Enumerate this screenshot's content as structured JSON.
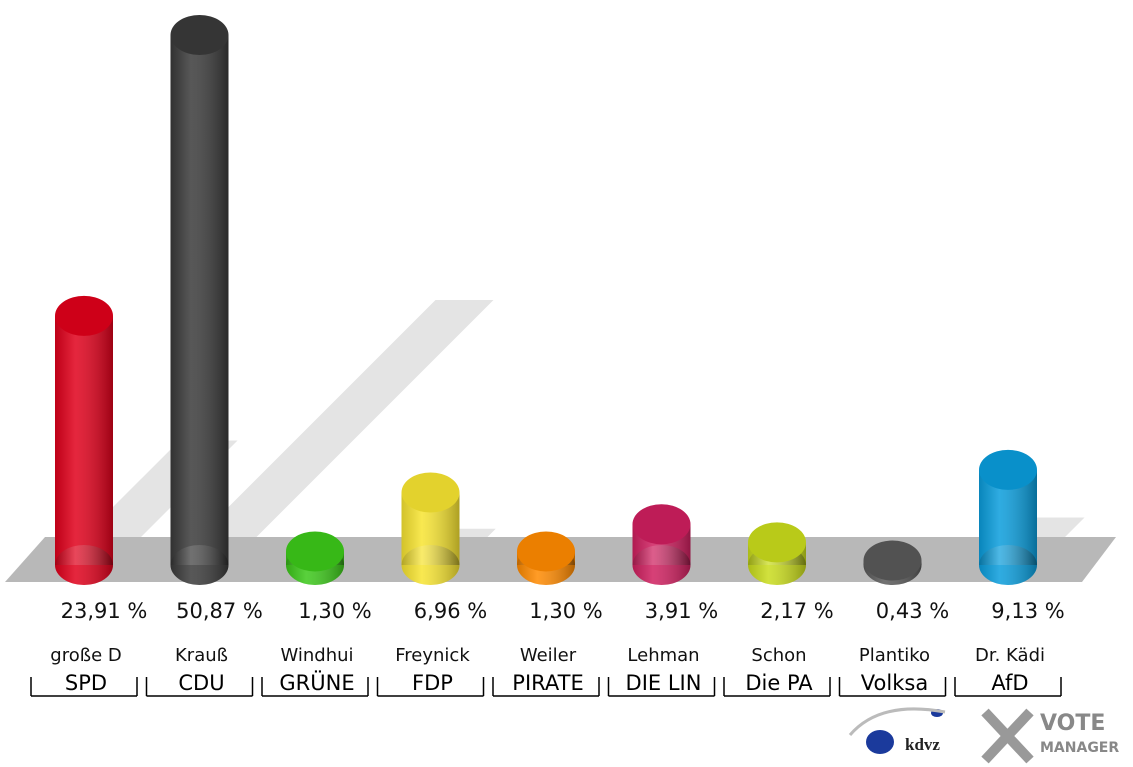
{
  "chart_data": {
    "type": "bar",
    "categories": [
      "SPD",
      "CDU",
      "GRÜNE",
      "FDP",
      "PIRATE",
      "DIE LIN",
      "Die PA",
      "Volksa",
      "AfD"
    ],
    "candidates": [
      "große D",
      "Krauß",
      "Windhui",
      "Freynick",
      "Weiler",
      "Lehman",
      "Schon",
      "Plantiko",
      "Dr. Kädi"
    ],
    "values": [
      23.91,
      50.87,
      1.3,
      6.96,
      1.3,
      3.91,
      2.17,
      0.43,
      9.13
    ],
    "value_labels": [
      "23,91 %",
      "50,87 %",
      "1,30 %",
      "6,96 %",
      "1,30 %",
      "3,91 %",
      "2,17 %",
      "0,43 %",
      "9,13 %"
    ],
    "colors": [
      "#e0001b",
      "#3a3a3a",
      "#3cc81a",
      "#f7e431",
      "#ff8a00",
      "#cf1f5f",
      "#c9dc1c",
      "#5a5a5a",
      "#0a9ddc"
    ],
    "logo": {
      "brand": "kdvz",
      "vote": "VOTE",
      "manager": "MANAGER"
    }
  }
}
